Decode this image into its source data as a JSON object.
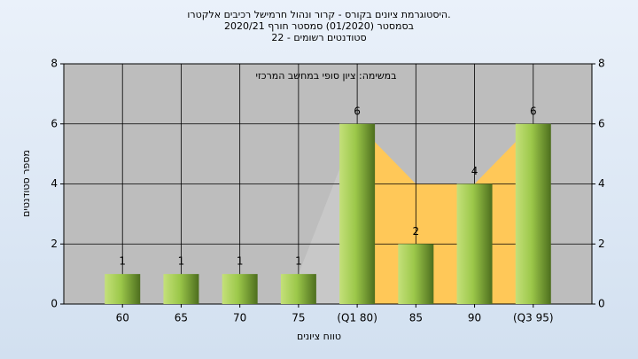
{
  "chart_data": {
    "type": "bar",
    "title": "היסטוגרמת ציונים בקורס - קרור ונהול חרמישל רכיבים אלקטרו.",
    "subtitle": "בסמסטר  (01/2020)  סמסטר חורף  2020/21",
    "subtitle2": "סטודנטים רשומים - 22",
    "annotation": "במשימה: ציון סופי במחשב המרכזי",
    "ylabel": "מספר סטודנטים",
    "xlabel": "טווח ציונים",
    "categories": [
      "60",
      "65",
      "70",
      "75",
      "(Q1 80)",
      "85",
      "90",
      "(Q3 95)"
    ],
    "values": [
      1,
      1,
      1,
      1,
      6,
      2,
      4,
      6
    ],
    "color": "#9cc84a",
    "areas": [
      {
        "color": "#c8c8c8",
        "values": [
          null,
          null,
          null,
          1,
          6,
          null,
          null,
          null
        ]
      },
      {
        "color": "#ffc858",
        "values": [
          null,
          null,
          null,
          null,
          6,
          4,
          4,
          6
        ]
      }
    ],
    "ylim": [
      0,
      8
    ],
    "yticks": [
      0,
      2,
      4,
      6,
      8
    ],
    "grid": true
  }
}
